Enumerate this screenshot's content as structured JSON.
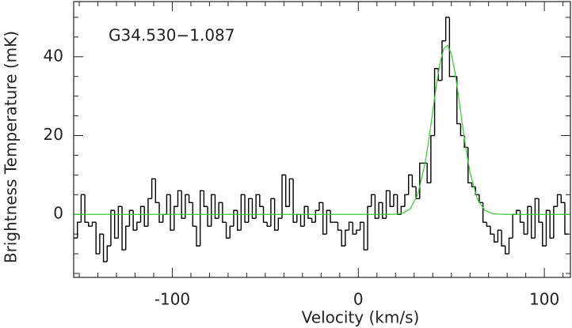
{
  "chart_data": {
    "type": "step",
    "xlabel": "Velocity (km/s)",
    "ylabel": "Brightness Temperature (mK)",
    "annotation": "G34.530−1.087",
    "xlim": [
      -153,
      114
    ],
    "ylim": [
      -16,
      54
    ],
    "xticks": [
      -100,
      0,
      100
    ],
    "yticks": [
      0,
      20,
      40
    ],
    "xminorticks": [
      -150,
      -140,
      -130,
      -120,
      -110,
      -90,
      -80,
      -70,
      -60,
      -50,
      -40,
      -30,
      -20,
      -10,
      10,
      20,
      30,
      40,
      50,
      60,
      70,
      80,
      90,
      110
    ],
    "yminorticks": [
      -15,
      -10,
      -5,
      5,
      10,
      15,
      25,
      30,
      35,
      45,
      50
    ],
    "series": [
      {
        "name": "spectrum",
        "color": "#000000",
        "style": "step",
        "x": [
          -152,
          -150,
          -148,
          -146,
          -144,
          -142,
          -140,
          -138,
          -136,
          -134,
          -132,
          -130,
          -128,
          -126,
          -124,
          -122,
          -120,
          -118,
          -116,
          -114,
          -112,
          -110,
          -108,
          -106,
          -104,
          -102,
          -100,
          -98,
          -96,
          -94,
          -92,
          -90,
          -88,
          -86,
          -84,
          -82,
          -80,
          -78,
          -76,
          -74,
          -72,
          -70,
          -68,
          -66,
          -64,
          -62,
          -60,
          -58,
          -56,
          -54,
          -52,
          -50,
          -48,
          -46,
          -44,
          -42,
          -40,
          -38,
          -36,
          -34,
          -32,
          -30,
          -28,
          -26,
          -24,
          -22,
          -20,
          -18,
          -16,
          -14,
          -12,
          -10,
          -8,
          -6,
          -4,
          -2,
          0,
          2,
          4,
          6,
          8,
          10,
          12,
          14,
          16,
          18,
          20,
          22,
          24,
          26,
          28,
          30,
          32,
          34,
          36,
          38,
          40,
          42,
          44,
          46,
          48,
          50,
          52,
          54,
          56,
          58,
          60,
          62,
          64,
          66,
          68,
          70,
          72,
          74,
          76,
          78,
          80,
          82,
          84,
          86,
          88,
          90,
          92,
          94,
          96,
          98,
          100,
          102,
          104,
          106,
          108,
          110,
          112
        ],
        "values": [
          -6,
          -2,
          5,
          -2,
          -3,
          -2,
          -10,
          -5,
          -12,
          -8,
          1,
          -6,
          2,
          -9,
          -3,
          1,
          -4,
          -2,
          2,
          -3,
          4,
          9,
          3,
          -2,
          0,
          5,
          -4,
          2,
          6,
          -1,
          5,
          3,
          -3,
          -8,
          6,
          2,
          -3,
          5,
          -1,
          3,
          -2,
          -6,
          -3,
          1,
          -4,
          5,
          -2,
          4,
          -1,
          5,
          2,
          -2,
          -3,
          4,
          -4,
          -1,
          10,
          2,
          9,
          -2,
          0,
          -3,
          2,
          -1,
          -2,
          1,
          3,
          -5,
          1,
          -2,
          -2,
          -4,
          -8,
          -4,
          -2,
          -5,
          -4,
          -2,
          -9,
          2,
          5,
          -1,
          3,
          -1,
          6,
          2,
          5,
          0,
          2,
          5,
          10,
          7,
          4,
          13,
          13,
          8,
          20,
          37,
          34,
          44,
          50,
          35,
          35,
          23,
          20,
          17,
          8,
          7,
          5,
          3,
          -2,
          -3,
          -5,
          -7,
          -4,
          -8,
          -10,
          -6,
          0,
          1,
          -2,
          -5,
          2,
          -6,
          4,
          -2,
          -8,
          1,
          -6,
          2,
          5,
          3,
          -5
        ]
      },
      {
        "name": "fit",
        "color": "#33cc33",
        "style": "line",
        "x": [
          -153,
          16,
          20,
          24,
          28,
          32,
          36,
          38,
          40,
          42,
          44,
          46,
          48,
          50,
          52,
          54,
          56,
          58,
          60,
          64,
          68,
          72,
          76,
          80,
          114
        ],
        "values": [
          0,
          0,
          0.05,
          0.32,
          1.46,
          5.08,
          13.3,
          19.3,
          26.1,
          32.9,
          38.6,
          42.1,
          42.9,
          40.7,
          35.9,
          29.5,
          22.6,
          16.1,
          10.7,
          3.8,
          1.03,
          0.21,
          0.03,
          0,
          0
        ]
      }
    ]
  }
}
